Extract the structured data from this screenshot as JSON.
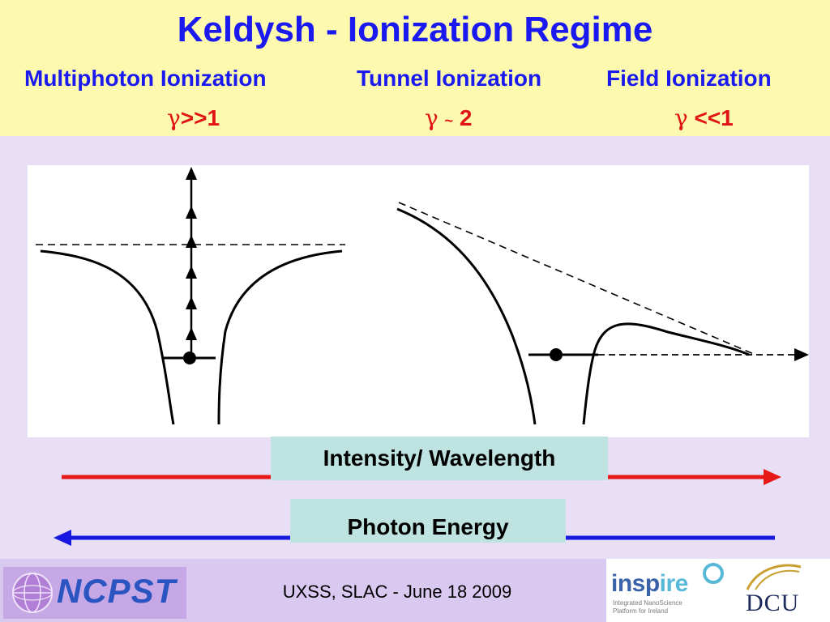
{
  "title": "Keldysh - Ionization Regime",
  "regimes": [
    {
      "label": "Multiphoton Ionization",
      "gamma_symbol": "γ",
      "gamma_relation": ">>1"
    },
    {
      "label": "Tunnel Ionization",
      "gamma_symbol": "γ",
      "gamma_tilde": "~",
      "gamma_value": "2"
    },
    {
      "label": "Field Ionization",
      "gamma_symbol": "γ",
      "gamma_relation": "<<1"
    }
  ],
  "axes": {
    "intensity_label": "Intensity/ Wavelength",
    "photon_energy_label": "Photon Energy"
  },
  "footer": {
    "logo_left": "NCPST",
    "text": "UXSS, SLAC - June 18 2009",
    "inspire_prefix": "insp",
    "inspire_suffix": "ire",
    "inspire_sub": "Integrated NanoScience Platform for Ireland",
    "dcu": "DCU"
  },
  "colors": {
    "title": "#1a1af0",
    "gamma": "#e01414",
    "header_bg": "#fdfab0",
    "body_bg": "#e8def5",
    "intensity_arrow": "#e81818",
    "photon_arrow": "#1818e0"
  }
}
